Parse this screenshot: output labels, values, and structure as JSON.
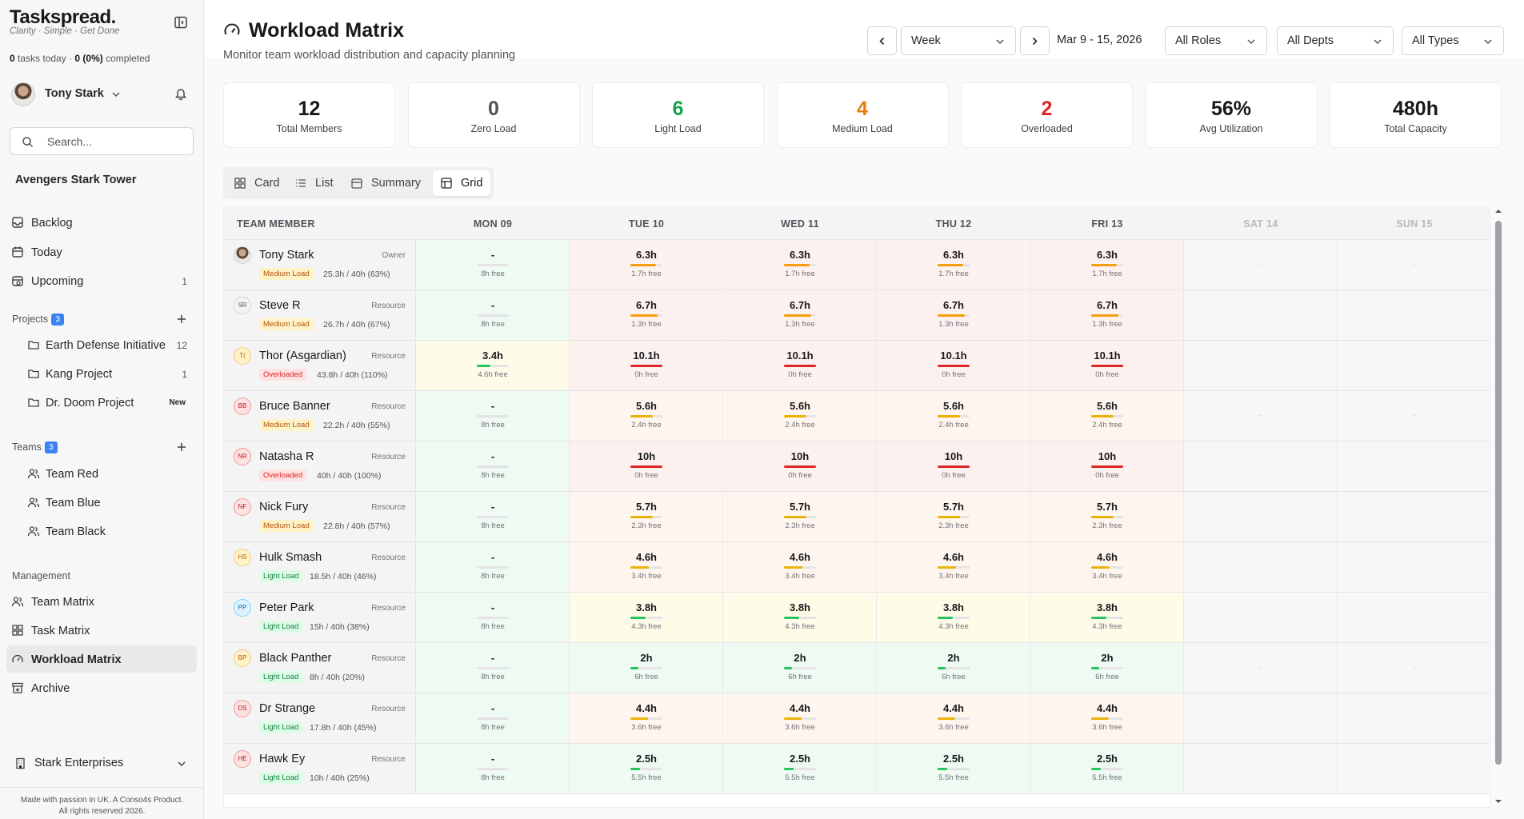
{
  "app": {
    "logo": "Taskspread.",
    "tagline": "Clarity · Simple · Get Done",
    "tasks_today": "0",
    "tasks_today_label": " tasks today · ",
    "completed_count": "0",
    "completed_pct": "(0%)",
    "completed_label": " completed"
  },
  "user": {
    "name": "Tony Stark"
  },
  "search": {
    "placeholder": "Search..."
  },
  "workspace": "Avengers Stark Tower",
  "nav_main": [
    {
      "label": "Backlog",
      "icon": "inbox-icon",
      "count": ""
    },
    {
      "label": "Today",
      "icon": "calendar-icon",
      "count": ""
    },
    {
      "label": "Upcoming",
      "icon": "calendar-clock-icon",
      "count": "1"
    }
  ],
  "projects": {
    "title": "Projects",
    "count": "3",
    "items": [
      {
        "label": "Earth Defense Initiative",
        "count": "12"
      },
      {
        "label": "Kang Project",
        "count": "1"
      },
      {
        "label": "Dr. Doom Project",
        "badge": "New"
      }
    ]
  },
  "teams": {
    "title": "Teams",
    "count": "3",
    "items": [
      {
        "label": "Team Red"
      },
      {
        "label": "Team Blue"
      },
      {
        "label": "Team Black"
      }
    ]
  },
  "management": {
    "title": "Management",
    "items": [
      {
        "label": "Team Matrix",
        "icon": "users-icon"
      },
      {
        "label": "Task Matrix",
        "icon": "grid-icon"
      },
      {
        "label": "Workload Matrix",
        "icon": "gauge-icon",
        "active": true
      },
      {
        "label": "Archive",
        "icon": "archive-icon"
      }
    ]
  },
  "org": {
    "name": "Stark Enterprises"
  },
  "footer": {
    "line1": "Made with passion in UK. A Conso4s Product.",
    "line2": "All rights reserved 2026."
  },
  "header": {
    "title": "Workload Matrix",
    "subtitle": "Monitor team workload distribution and capacity planning",
    "period": "Week",
    "date_range": "Mar 9 - 15, 2026",
    "roles": "All Roles",
    "depts": "All Depts",
    "types": "All Types"
  },
  "stats": [
    {
      "value": "12",
      "label": "Total Members",
      "color": "#18181b"
    },
    {
      "value": "0",
      "label": "Zero Load",
      "color": "#52525b"
    },
    {
      "value": "6",
      "label": "Light Load",
      "color": "#16a34a"
    },
    {
      "value": "4",
      "label": "Medium Load",
      "color": "#ea7c0c"
    },
    {
      "value": "2",
      "label": "Overloaded",
      "color": "#dc2626"
    },
    {
      "value": "56%",
      "label": "Avg Utilization",
      "color": "#18181b"
    },
    {
      "value": "480h",
      "label": "Total Capacity",
      "color": "#18181b"
    }
  ],
  "views": [
    "Card",
    "List",
    "Summary",
    "Grid"
  ],
  "active_view": "Grid",
  "grid": {
    "member_header": "TEAM MEMBER",
    "days": [
      "MON 09",
      "TUE 10",
      "WED 11",
      "THU 12",
      "FRI 13",
      "SAT 14",
      "SUN 15"
    ],
    "weekend_placeholder": "-",
    "members": [
      {
        "name": "Tony Stark",
        "initials": "",
        "photo": true,
        "role": "Owner",
        "load": "Medium Load",
        "hours": "25.3h / 40h (63%)",
        "mon": "-",
        "mon_free": "8h free",
        "day": "6.3h",
        "day_free": "1.7h free",
        "fill": 0.79
      },
      {
        "name": "Steve R",
        "initials": "SR",
        "role": "Resource",
        "load": "Medium Load",
        "hours": "26.7h / 40h (67%)",
        "mon": "-",
        "mon_free": "8h free",
        "day": "6.7h",
        "day_free": "1.3h free",
        "fill": 0.84
      },
      {
        "name": "Thor (Asgardian)",
        "initials": "T(",
        "role": "Resource",
        "load": "Overloaded",
        "hours": "43.8h / 40h (110%)",
        "mon": "3.4h",
        "mon_free": "4.6h free",
        "mon_fill": 0.43,
        "day": "10.1h",
        "day_free": "0h free",
        "fill": 1
      },
      {
        "name": "Bruce Banner",
        "initials": "BB",
        "role": "Resource",
        "load": "Medium Load",
        "hours": "22.2h / 40h (55%)",
        "mon": "-",
        "mon_free": "8h free",
        "day": "5.6h",
        "day_free": "2.4h free",
        "fill": 0.7
      },
      {
        "name": "Natasha R",
        "initials": "NR",
        "role": "Resource",
        "load": "Overloaded",
        "hours": "40h / 40h (100%)",
        "mon": "-",
        "mon_free": "8h free",
        "day": "10h",
        "day_free": "0h free",
        "fill": 1
      },
      {
        "name": "Nick Fury",
        "initials": "NF",
        "role": "Resource",
        "load": "Medium Load",
        "hours": "22.8h / 40h (57%)",
        "mon": "-",
        "mon_free": "8h free",
        "day": "5.7h",
        "day_free": "2.3h free",
        "fill": 0.71
      },
      {
        "name": "Hulk Smash",
        "initials": "HS",
        "role": "Resource",
        "load": "Light Load",
        "hours": "18.5h / 40h (46%)",
        "mon": "-",
        "mon_free": "8h free",
        "day": "4.6h",
        "day_free": "3.4h free",
        "fill": 0.58
      },
      {
        "name": "Peter Park",
        "initials": "PP",
        "role": "Resource",
        "load": "Light Load",
        "hours": "15h / 40h (38%)",
        "mon": "-",
        "mon_free": "8h free",
        "day": "3.8h",
        "day_free": "4.3h free",
        "fill": 0.47
      },
      {
        "name": "Black Panther",
        "initials": "BP",
        "role": "Resource",
        "load": "Light Load",
        "hours": "8h / 40h (20%)",
        "mon": "-",
        "mon_free": "8h free",
        "day": "2h",
        "day_free": "6h free",
        "fill": 0.25
      },
      {
        "name": "Dr Strange",
        "initials": "DS",
        "role": "Resource",
        "load": "Light Load",
        "hours": "17.8h / 40h (45%)",
        "mon": "-",
        "mon_free": "8h free",
        "day": "4.4h",
        "day_free": "3.6h free",
        "fill": 0.55
      },
      {
        "name": "Hawk Ey",
        "initials": "HE",
        "role": "Resource",
        "load": "Light Load",
        "hours": "10h / 40h (25%)",
        "mon": "-",
        "mon_free": "8h free",
        "day": "2.5h",
        "day_free": "5.5h free",
        "fill": 0.31
      }
    ]
  },
  "colors": {
    "green": "#22c55e",
    "amber": "#eab308",
    "orange": "#f59e0b",
    "red": "#dc2626",
    "bg_green": "#effaf3",
    "bg_yellow": "#fefbe8",
    "bg_orange": "#fef6ee",
    "bg_red": "#fdf1f0"
  }
}
